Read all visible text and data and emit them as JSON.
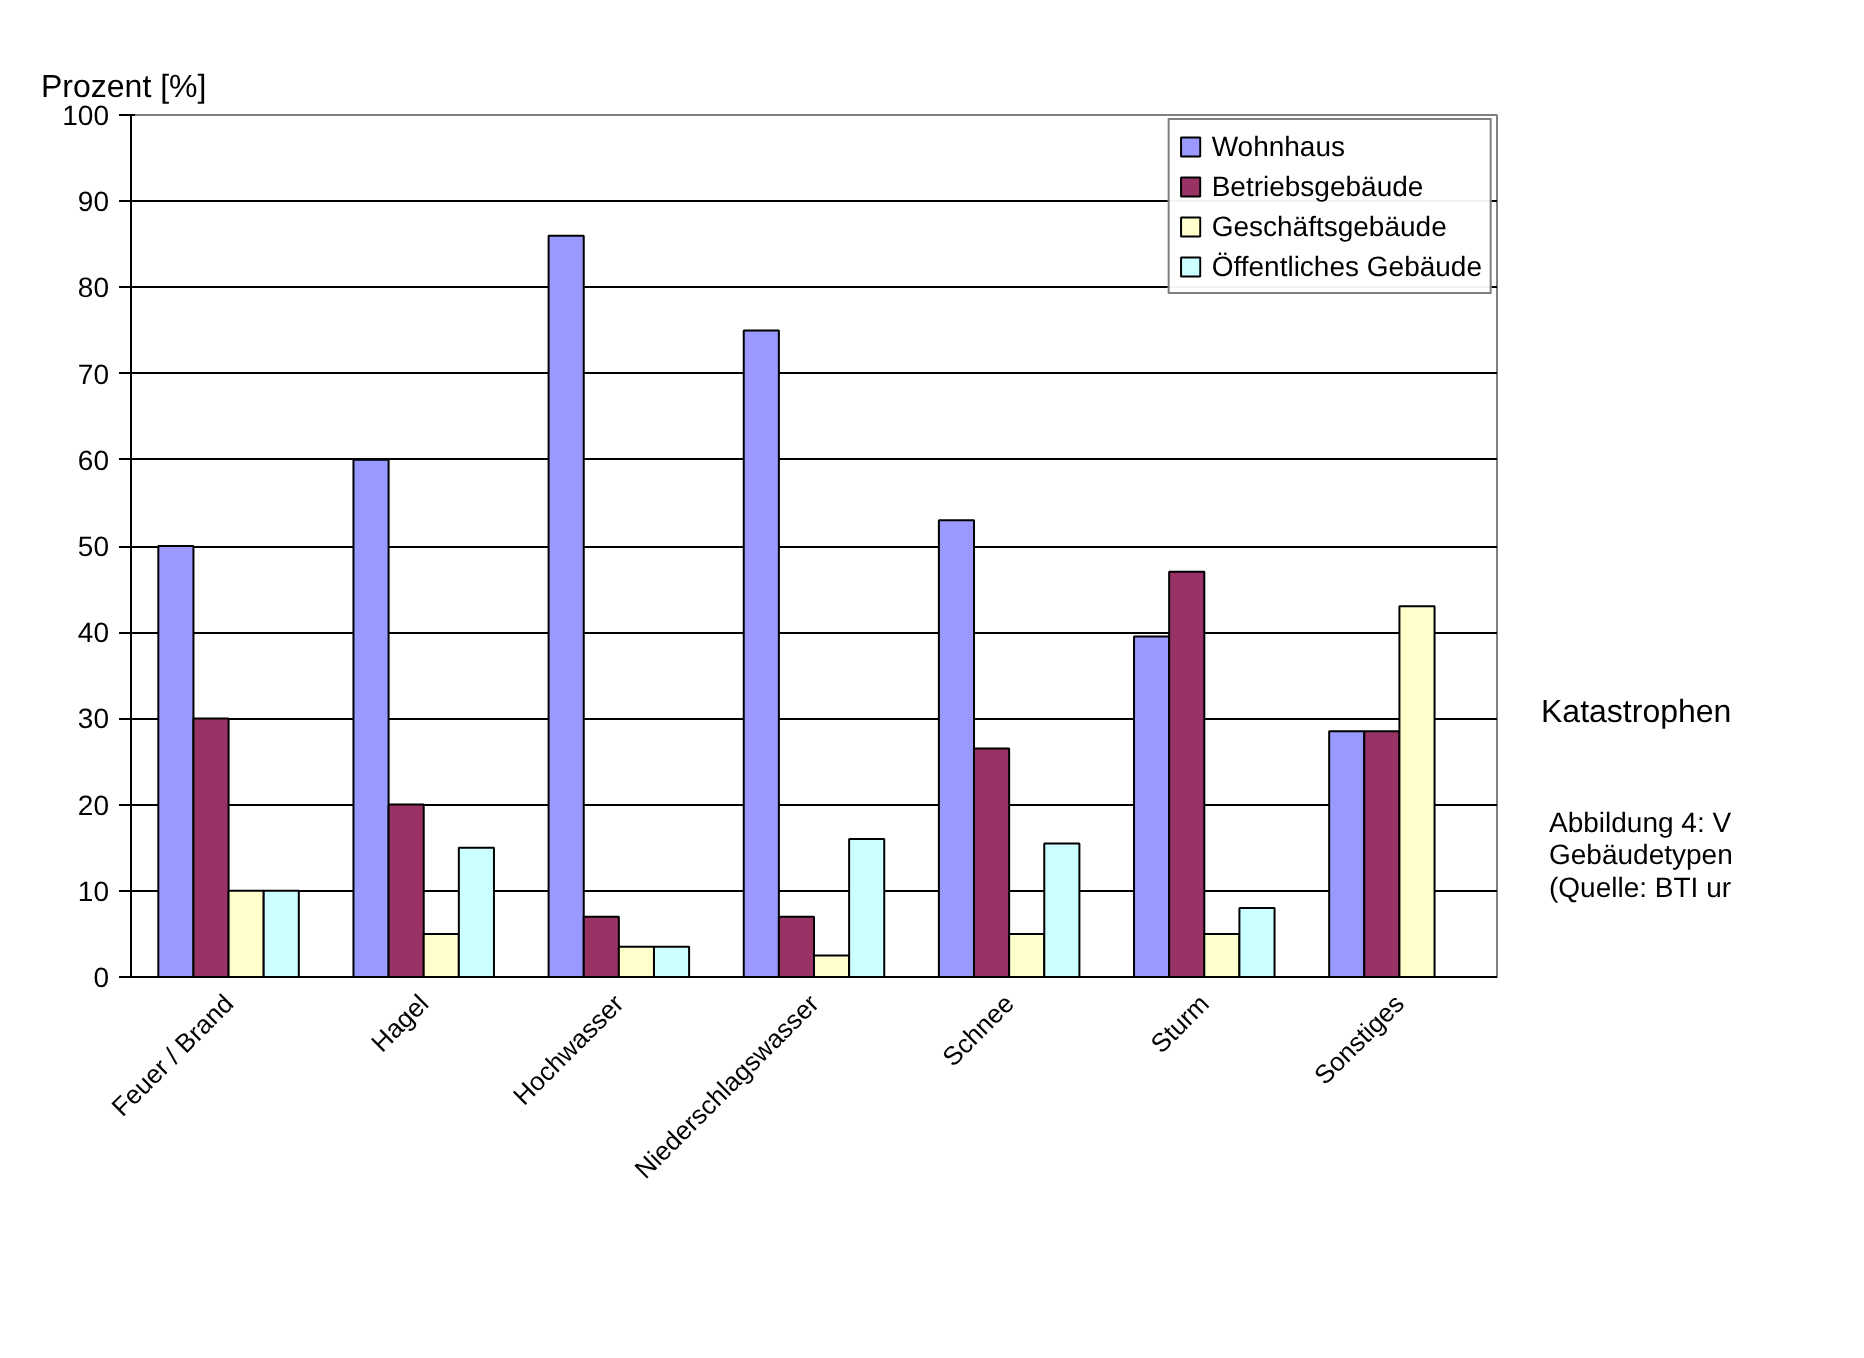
{
  "chart_data": {
    "type": "bar",
    "ylabel": "Prozent [%]",
    "xlabel": "Katastrophen",
    "categories": [
      "Feuer / Brand",
      "Hagel",
      "Hochwasser",
      "Niederschlagswasser",
      "Schnee",
      "Sturm",
      "Sonstiges"
    ],
    "series": [
      {
        "name": "Wohnhaus",
        "color": "#9999ff",
        "values": [
          50,
          60,
          86,
          75,
          53,
          39.5,
          28.5
        ]
      },
      {
        "name": "Betriebsgebäude",
        "color": "#993366",
        "values": [
          30,
          20,
          7,
          7,
          26.5,
          47,
          28.5
        ]
      },
      {
        "name": "Geschäftsgebäude",
        "color": "#ffffcc",
        "values": [
          10,
          5,
          3.5,
          2.5,
          5,
          5,
          43
        ]
      },
      {
        "name": "Öffentliches Gebäude",
        "color": "#ccffff",
        "values": [
          10,
          15,
          3.5,
          16,
          15.5,
          8,
          null
        ]
      }
    ],
    "ylim": [
      0,
      100
    ],
    "yticks": [
      0,
      10,
      20,
      30,
      40,
      50,
      60,
      70,
      80,
      90,
      100
    ],
    "grid": "y",
    "legend": "top right",
    "annotations": [
      "Abbildung 4: V",
      "Gebäudetypen",
      "(Quelle: BTI ur"
    ]
  }
}
